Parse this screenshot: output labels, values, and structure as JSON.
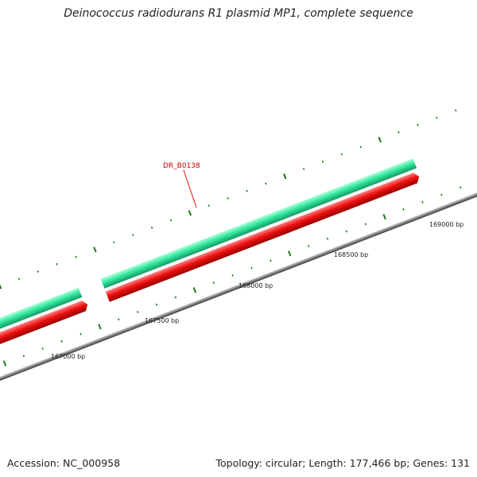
{
  "title": "Deinococcus radiodurans R1 plasmid MP1, complete sequence",
  "footer": {
    "accession": "Accession: NC_000958",
    "summary": "Topology: circular; Length: 177,466 bp; Genes: 131"
  },
  "gene_label": {
    "text": "DR_B0138",
    "color": "#cc0000"
  },
  "colors": {
    "forward_gene": "#33e8a0",
    "reverse_gene": "#ee1111",
    "backbone": "#808080",
    "tick": "#1a7a1a"
  },
  "position_labels": [
    {
      "bp": 167000,
      "text": "167000 bp"
    },
    {
      "bp": 167500,
      "text": "167500 bp"
    },
    {
      "bp": 168000,
      "text": "168000 bp"
    },
    {
      "bp": 168500,
      "text": "168500 bp"
    },
    {
      "bp": 169000,
      "text": "169000 bp"
    }
  ]
}
